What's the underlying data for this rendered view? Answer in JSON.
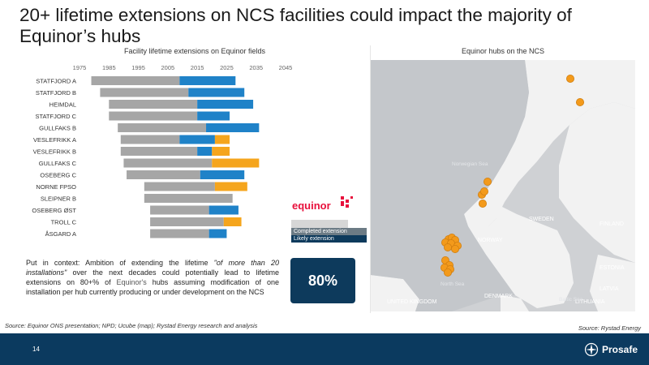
{
  "slide": {
    "title": "20+ lifetime extensions on NCS facilities could impact the majority of Equinor’s hubs",
    "page_number": "14"
  },
  "left_panel": {
    "heading": "Facility lifetime extensions on Equinor fields"
  },
  "right_panel": {
    "heading": "Equinor hubs on the NCS"
  },
  "chart_data": {
    "type": "bar",
    "orientation": "horizontal",
    "stacked": true,
    "x_ticks": [
      1975,
      1985,
      1995,
      2005,
      2015,
      2025,
      2035,
      2045
    ],
    "xlim": [
      1975,
      2045
    ],
    "grid": false,
    "colors": {
      "original": "#a6a6a6",
      "completed": "#1f82c8",
      "likely": "#f5a51d"
    },
    "series_names": {
      "completed": "Completed extension",
      "likely": "Likely extension"
    },
    "categories": [
      "STATFJORD A",
      "STATFJORD B",
      "HEIMDAL",
      "STATFJORD C",
      "GULLFAKS B",
      "VESLEFRIKK A",
      "VESLEFRIKK B",
      "GULLFAKS C",
      "OSEBERG C",
      "NORNE FPSO",
      "SLEIPNER B",
      "OSEBERG ØST",
      "TROLL C",
      "ÅSGARD A"
    ],
    "bars": [
      {
        "start": 1979,
        "original_end": 2009,
        "completed_end": 2028,
        "likely_end": 2028
      },
      {
        "start": 1982,
        "original_end": 2012,
        "completed_end": 2031,
        "likely_end": 2031
      },
      {
        "start": 1985,
        "original_end": 2015,
        "completed_end": 2034,
        "likely_end": 2034
      },
      {
        "start": 1985,
        "original_end": 2015,
        "completed_end": 2026,
        "likely_end": 2026
      },
      {
        "start": 1988,
        "original_end": 2018,
        "completed_end": 2036,
        "likely_end": 2036
      },
      {
        "start": 1989,
        "original_end": 2009,
        "completed_end": 2021,
        "likely_end": 2026
      },
      {
        "start": 1989,
        "original_end": 2015,
        "completed_end": 2020,
        "likely_end": 2026
      },
      {
        "start": 1990,
        "original_end": 2020,
        "completed_end": 2020,
        "likely_end": 2036
      },
      {
        "start": 1991,
        "original_end": 2016,
        "completed_end": 2031,
        "likely_end": 2031
      },
      {
        "start": 1997,
        "original_end": 2021,
        "completed_end": 2021,
        "likely_end": 2032
      },
      {
        "start": 1997,
        "original_end": 2027,
        "completed_end": 2027,
        "likely_end": 2027
      },
      {
        "start": 1999,
        "original_end": 2019,
        "completed_end": 2029,
        "likely_end": 2029
      },
      {
        "start": 1999,
        "original_end": 2024,
        "completed_end": 2024,
        "likely_end": 2030
      },
      {
        "start": 1999,
        "original_end": 2019,
        "completed_end": 2025,
        "likely_end": 2025
      }
    ]
  },
  "context": {
    "lead": "Put in context: Ambition of extending the lifetime ",
    "quote": "\"of more than 20 installations\"",
    "mid": " over the next decades could potentially lead to lifetime extensions on 80+% of ",
    "company": "Equinor's",
    "tail": " hubs assuming modification of one installation per hub currently producing or under development on the NCS"
  },
  "highlight": {
    "value": "80%",
    "color": "#0d3a5c"
  },
  "logo": {
    "name": "equinor",
    "color": "#e8103c"
  },
  "map": {
    "label_colors": {
      "land_label": "#ffffff",
      "sea_label": "#e4e6e9"
    },
    "country_labels": [
      "SWEDEN",
      "NORWAY",
      "FINLAND",
      "ESTONIA",
      "LATVIA",
      "LITHUANIA",
      "DENMARK",
      "UNITED KINGDOM"
    ],
    "sea_labels": [
      "Norwegian Sea",
      "North Sea",
      "Baltic Sea"
    ],
    "hub_color": "#f39a1b"
  },
  "sources": {
    "left": "Source: Equinor ONS presentation; NPD; Ucube (map); Rystad Energy research and analysis",
    "right": "Source: Rystad Energy"
  },
  "brand": {
    "name": "Prosafe",
    "icon": "prosafe-compass-icon"
  },
  "theme": {
    "footer": "#0b3a5f"
  }
}
